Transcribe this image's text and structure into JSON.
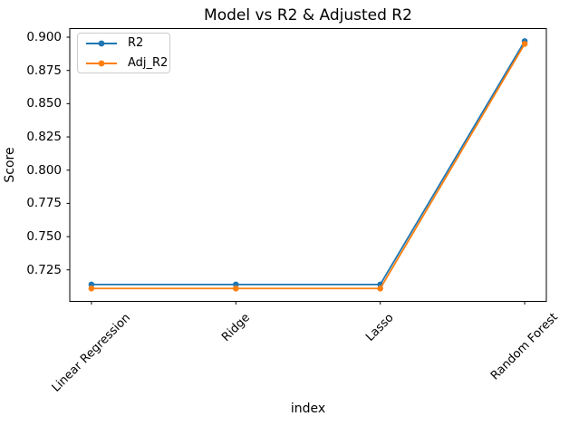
{
  "chart_data": {
    "type": "line",
    "title": "Model vs R2 & Adjusted R2",
    "xlabel": "index",
    "ylabel": "Score",
    "categories": [
      "Linear Regression",
      "Ridge",
      "Lasso",
      "Random Forest"
    ],
    "series": [
      {
        "name": "R2",
        "color": "#1f77b4",
        "marker": "o",
        "values": [
          0.714,
          0.714,
          0.714,
          0.897
        ]
      },
      {
        "name": "Adj_R2",
        "color": "#ff7f0e",
        "marker": "o",
        "values": [
          0.711,
          0.711,
          0.711,
          0.895
        ]
      }
    ],
    "yticks": [
      0.9,
      0.875,
      0.85,
      0.825,
      0.8,
      0.775,
      0.75,
      0.725
    ],
    "ytick_labels": [
      "0.900",
      "0.875",
      "0.850",
      "0.825",
      "0.800",
      "0.775",
      "0.750",
      "0.725"
    ],
    "ylim": [
      0.7013,
      0.9065
    ],
    "xlim": [
      -0.15,
      3.15
    ],
    "grid": false,
    "legend_position": "upper left",
    "background_color": "#ffffff",
    "spine_color": "#000000"
  }
}
